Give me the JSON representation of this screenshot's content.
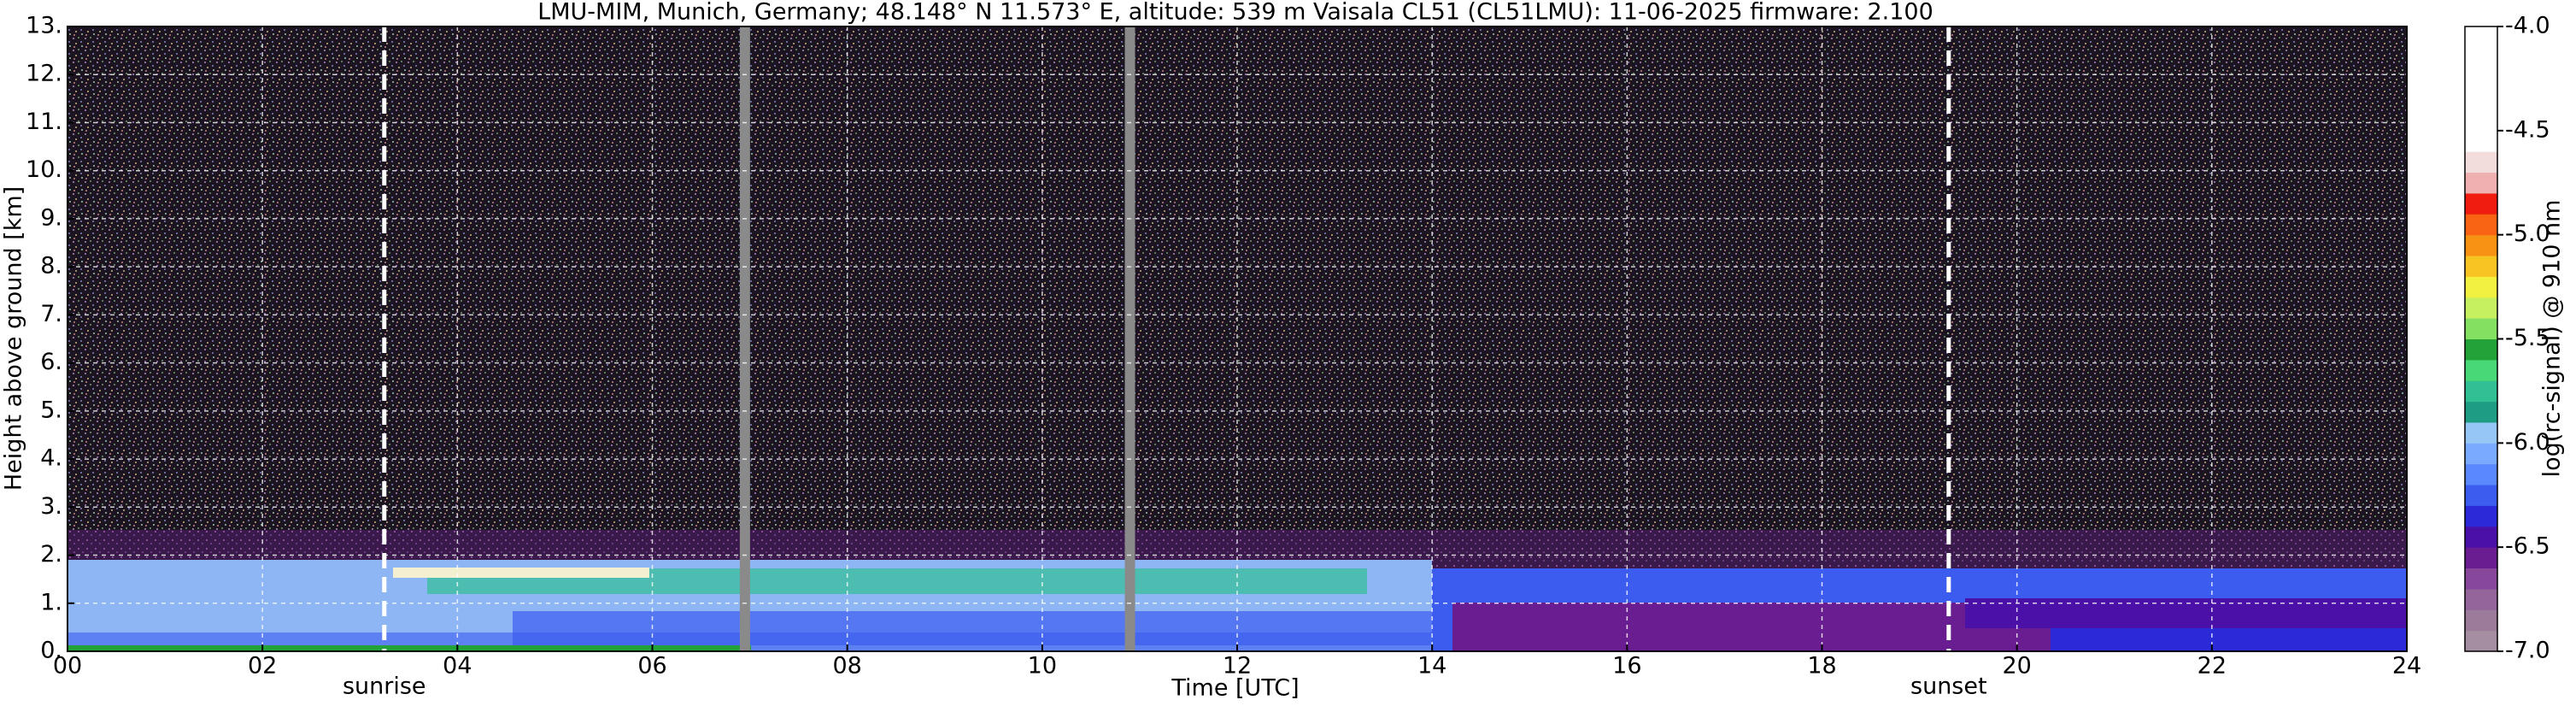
{
  "chart_data": {
    "type": "time-height",
    "title": "LMU-MIM, Munich, Germany; 48.148° N 11.573° E, altitude: 539 m    Vaisala CL51 (CL51LMU): 11-06-2025    firmware: 2.100",
    "x_label": "Time [UTC]",
    "y_label": "Height above ground [km]",
    "colorbar_label": "log(rc-signal) @ 910 nm",
    "xlim": [
      0,
      24
    ],
    "xticks": [
      {
        "value": 0,
        "label": "00"
      },
      {
        "value": 2,
        "label": "02"
      },
      {
        "value": 4,
        "label": "04"
      },
      {
        "value": 6,
        "label": "06"
      },
      {
        "value": 8,
        "label": "08"
      },
      10,
      12,
      14,
      16,
      18,
      20,
      22,
      24
    ],
    "ylim": [
      0,
      13
    ],
    "yticks": [
      {
        "value": 0,
        "label": "0."
      },
      {
        "value": 1,
        "label": "1."
      },
      {
        "value": 2,
        "label": "2."
      },
      {
        "value": 3,
        "label": "3."
      },
      {
        "value": 4,
        "label": "4."
      },
      {
        "value": 5,
        "label": "5."
      },
      {
        "value": 6,
        "label": "6."
      },
      {
        "value": 7,
        "label": "7."
      },
      {
        "value": 8,
        "label": "8."
      },
      {
        "value": 9,
        "label": "9."
      },
      {
        "value": 10,
        "label": "10."
      },
      {
        "value": 11,
        "label": "11."
      },
      {
        "value": 12,
        "label": "12."
      },
      {
        "value": 13,
        "label": "13."
      }
    ],
    "clim": [
      -7,
      -4
    ],
    "cticks": [
      {
        "value": -7,
        "label": "-7.0"
      },
      -6.5,
      {
        "value": -6,
        "label": "-6.0"
      },
      -5.5,
      {
        "value": -5,
        "label": "-5.0"
      },
      -4.5,
      {
        "value": -4,
        "label": "-4.0"
      }
    ],
    "colormap": [
      "#a58da2",
      "#9c7a9a",
      "#94659a",
      "#87479a",
      "#6a1d90",
      "#4a10a8",
      "#2a2ad8",
      "#3c5cf0",
      "#5a88ff",
      "#78aaff",
      "#96c6f4",
      "#1e9c84",
      "#30c094",
      "#48d878",
      "#22a238",
      "#84e060",
      "#c6f060",
      "#f2f040",
      "#f8c424",
      "#f89214",
      "#f86414",
      "#f01c10",
      "#eeb0b0",
      "#f2dcdc",
      "#ffffff",
      "#ffffff",
      "#ffffff",
      "#ffffff",
      "#ffffff",
      "#ffffff"
    ],
    "grid": true,
    "annotations": [
      {
        "text": "sunrise",
        "x": 3.25
      },
      {
        "text": "sunset",
        "x": 19.3
      }
    ],
    "missing_data": [
      6.95,
      10.9
    ]
  }
}
